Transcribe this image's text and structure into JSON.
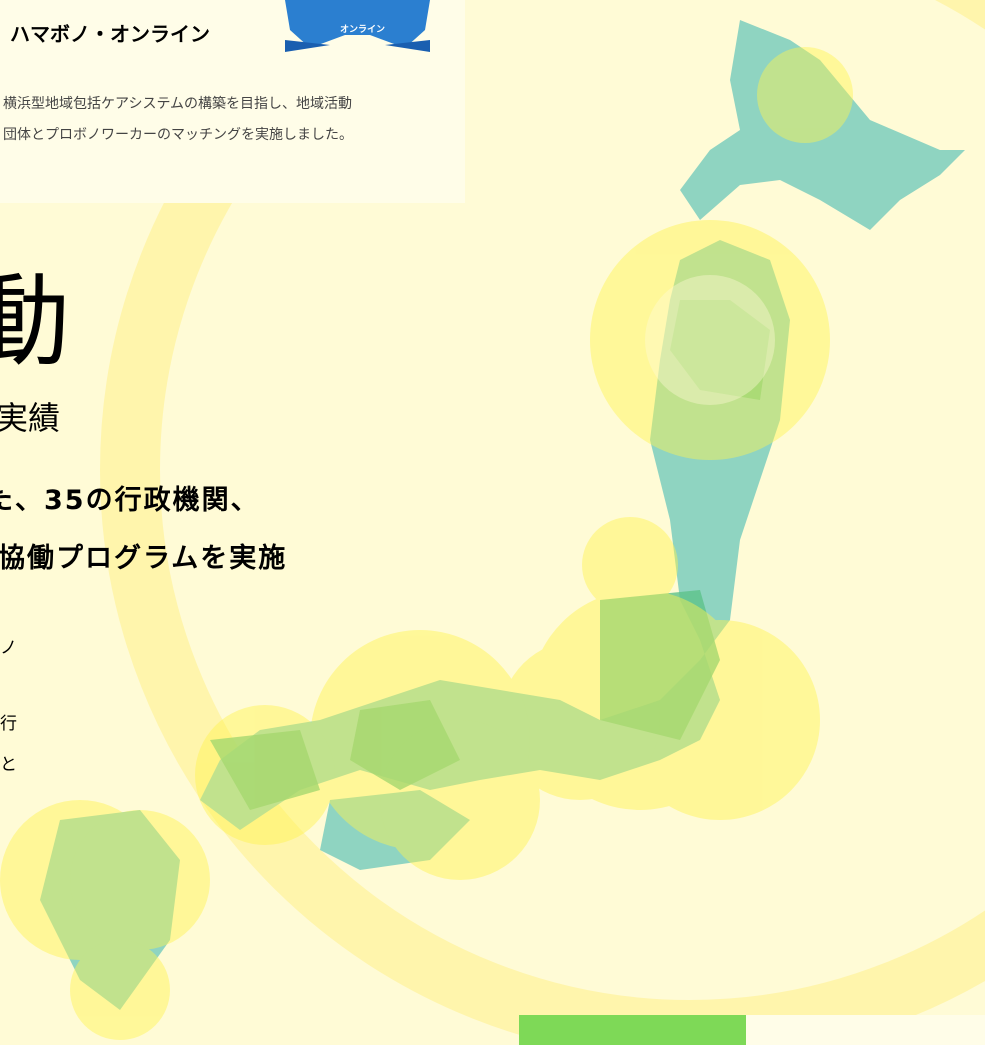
{
  "header": {
    "title": "ハマボノ・オンライン",
    "logo_text": "オンライン",
    "description": [
      "横浜型地域包括ケアシステムの構築を目指し、地域活動",
      "団体とプロボノワーカーのマッチングを実施しました。"
    ]
  },
  "hero": {
    "heading": "動",
    "subheading": "実績",
    "lead": [
      "た、35の行政機関、",
      "協働プログラムを実施"
    ],
    "body_fragments": [
      "ノ",
      "行",
      "と"
    ]
  }
}
